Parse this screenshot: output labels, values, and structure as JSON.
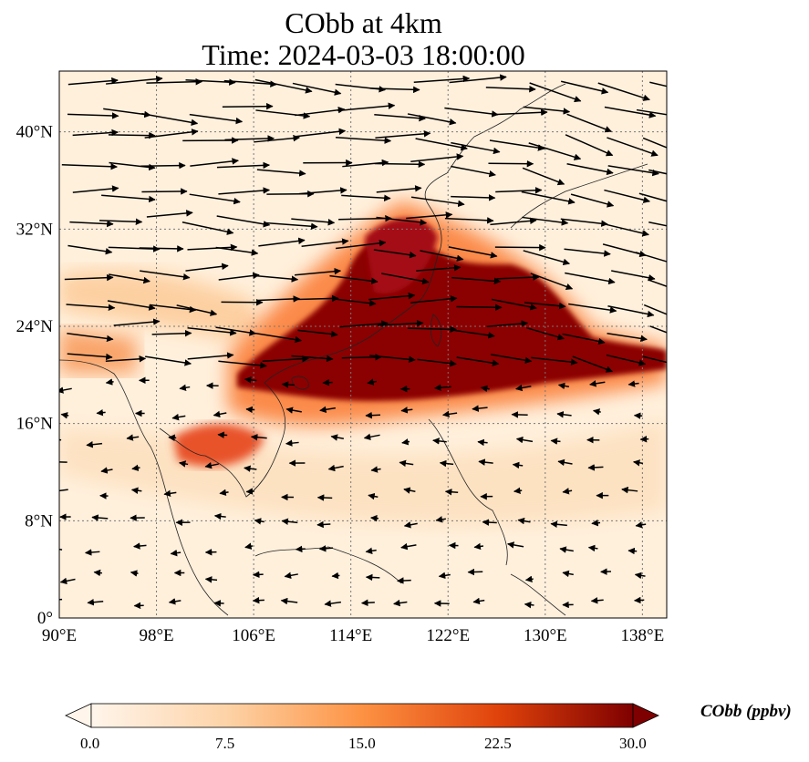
{
  "title": {
    "line1": "CObb at 4km",
    "line2": "Time: 2024-03-03 18:00:00"
  },
  "map": {
    "extent": {
      "lon_min": 90,
      "lon_max": 140,
      "lat_min": 0,
      "lat_max": 45
    },
    "lon_ticks": [
      "90°E",
      "98°E",
      "106°E",
      "114°E",
      "122°E",
      "130°E",
      "138°E"
    ],
    "lat_ticks": [
      "0°",
      "8°N",
      "16°N",
      "24°N",
      "32°N",
      "40°N"
    ],
    "gridlines": "dotted"
  },
  "colorbar": {
    "label": "CObb (ppbv)",
    "tick_labels": [
      "0.0",
      "7.5",
      "15.0",
      "22.5",
      "30.0"
    ],
    "min": 0,
    "max": 30,
    "extend": "both",
    "colors": [
      "#fff5eb",
      "#fdd3a7",
      "#fd9243",
      "#e0430b",
      "#7f0000"
    ]
  }
}
